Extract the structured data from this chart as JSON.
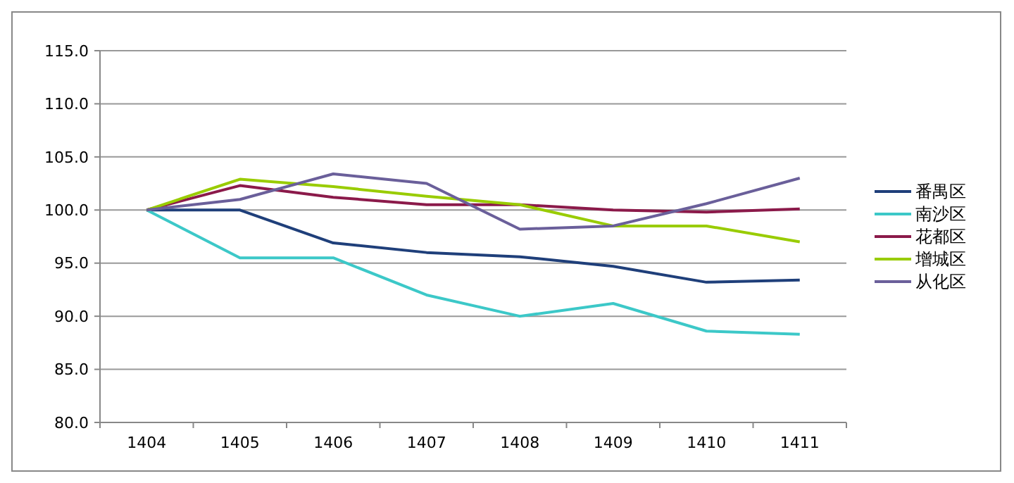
{
  "chart_data": {
    "type": "line",
    "categories": [
      "1404",
      "1405",
      "1406",
      "1407",
      "1408",
      "1409",
      "1410",
      "1411"
    ],
    "series": [
      {
        "name": "番禺区",
        "color": "#1f3f7a",
        "values": [
          100,
          100,
          96.9,
          96.0,
          95.6,
          94.7,
          93.2,
          93.4
        ]
      },
      {
        "name": "南沙区",
        "color": "#3cc8c8",
        "values": [
          100,
          95.5,
          95.5,
          92.0,
          90.0,
          91.2,
          88.6,
          88.3
        ]
      },
      {
        "name": "花都区",
        "color": "#8b1a4a",
        "values": [
          100,
          102.3,
          101.2,
          100.5,
          100.5,
          100.0,
          99.8,
          100.1
        ]
      },
      {
        "name": "增城区",
        "color": "#99cc00",
        "values": [
          100,
          102.9,
          102.2,
          101.3,
          100.5,
          98.5,
          98.5,
          97.0
        ]
      },
      {
        "name": "从化区",
        "color": "#6a5f9a",
        "values": [
          100,
          101.0,
          103.4,
          102.5,
          98.2,
          98.5,
          100.6,
          103.0
        ]
      }
    ],
    "ylim": [
      80,
      115
    ],
    "yticks": [
      {
        "value": 80,
        "label": "80.0"
      },
      {
        "value": 85,
        "label": "85.0"
      },
      {
        "value": 90,
        "label": "90.0"
      },
      {
        "value": 95,
        "label": "95.0"
      },
      {
        "value": 100,
        "label": "100.0"
      },
      {
        "value": 105,
        "label": "105.0"
      },
      {
        "value": 110,
        "label": "110.0"
      },
      {
        "value": 115,
        "label": "115.0"
      }
    ],
    "grid": "y",
    "legend": "right",
    "marker": "none",
    "line_style": "solid"
  }
}
